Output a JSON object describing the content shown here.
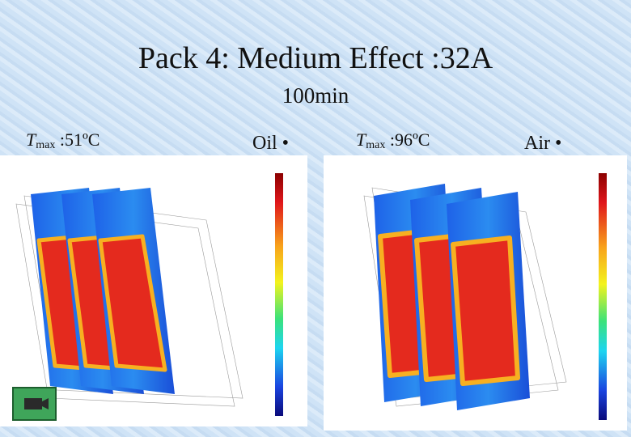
{
  "slide": {
    "title": "Pack 4: Medium Effect :32A",
    "subtitle": "100min",
    "left": {
      "label": {
        "symbol": "T",
        "subscript": "max",
        "value": " :51ºC"
      },
      "coolant": "Oil •"
    },
    "right": {
      "label": {
        "symbol": "T",
        "subscript": "max",
        "value": " :96ºC"
      },
      "coolant": "Air •"
    }
  }
}
